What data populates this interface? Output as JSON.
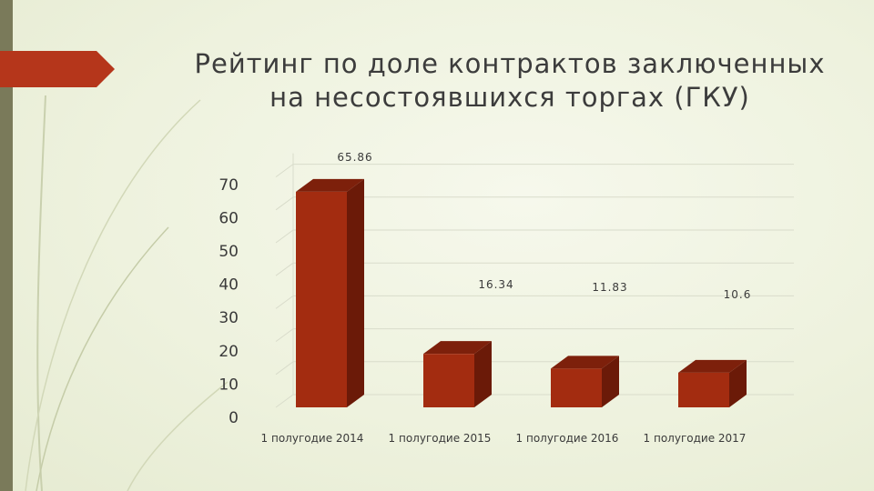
{
  "title_lines": [
    "Рейтинг по доле контрактов заключенных",
    "на несостоявшихся торгах (ГКУ)"
  ],
  "colors": {
    "bar_front": "#a32c10",
    "bar_side": "#6b1a08",
    "bar_top": "#7d200b",
    "accent": "#b5361b"
  },
  "chart_data": {
    "type": "bar",
    "title": "Рейтинг по доле контрактов заключенных на несостоявшихся торгах (ГКУ)",
    "categories": [
      "1 полугодие 2014",
      "1 полугодие 2015",
      "1 полугодие 2016",
      "1 полугодие 2017"
    ],
    "values": [
      65.86,
      16.34,
      11.83,
      10.6
    ],
    "value_labels": [
      "65.86",
      "16.34",
      "11.83",
      "10.6"
    ],
    "yticks": [
      "0",
      "10",
      "20",
      "30",
      "40",
      "50",
      "60",
      "70"
    ],
    "ylim": [
      0,
      70
    ],
    "xlabel": "",
    "ylabel": "",
    "grid": true,
    "style": "3d-column"
  }
}
